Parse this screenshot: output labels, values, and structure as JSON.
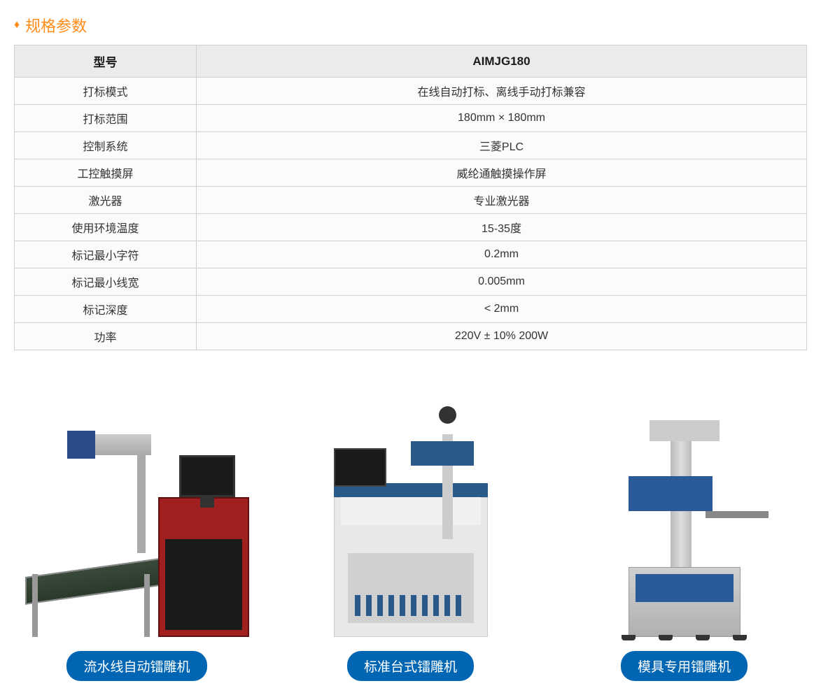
{
  "section_title": "规格参数",
  "table": {
    "header_label": "型号",
    "header_value": "AIMJG180",
    "rows": [
      {
        "label": "打标模式",
        "value": "在线自动打标、离线手动打标兼容"
      },
      {
        "label": "打标范围",
        "value": "180mm × 180mm"
      },
      {
        "label": "控制系统",
        "value": "三菱PLC"
      },
      {
        "label": "工控触摸屏",
        "value": "威纶通触摸操作屏"
      },
      {
        "label": "激光器",
        "value": "专业激光器"
      },
      {
        "label": "使用环境温度",
        "value": "15-35度"
      },
      {
        "label": "标记最小字符",
        "value": "0.2mm"
      },
      {
        "label": "标记最小线宽",
        "value": "0.005mm"
      },
      {
        "label": "标记深度",
        "value": "< 2mm"
      },
      {
        "label": "功率",
        "value": "220V ± 10%  200W"
      }
    ]
  },
  "products": [
    {
      "label": "流水线自动镭雕机"
    },
    {
      "label": "标准台式镭雕机"
    },
    {
      "label": "模具专用镭雕机"
    }
  ],
  "colors": {
    "accent": "#ff8c1a",
    "label_bg": "#0066b3",
    "table_header_bg": "#ebebeb",
    "table_border": "#d0d0d0"
  }
}
